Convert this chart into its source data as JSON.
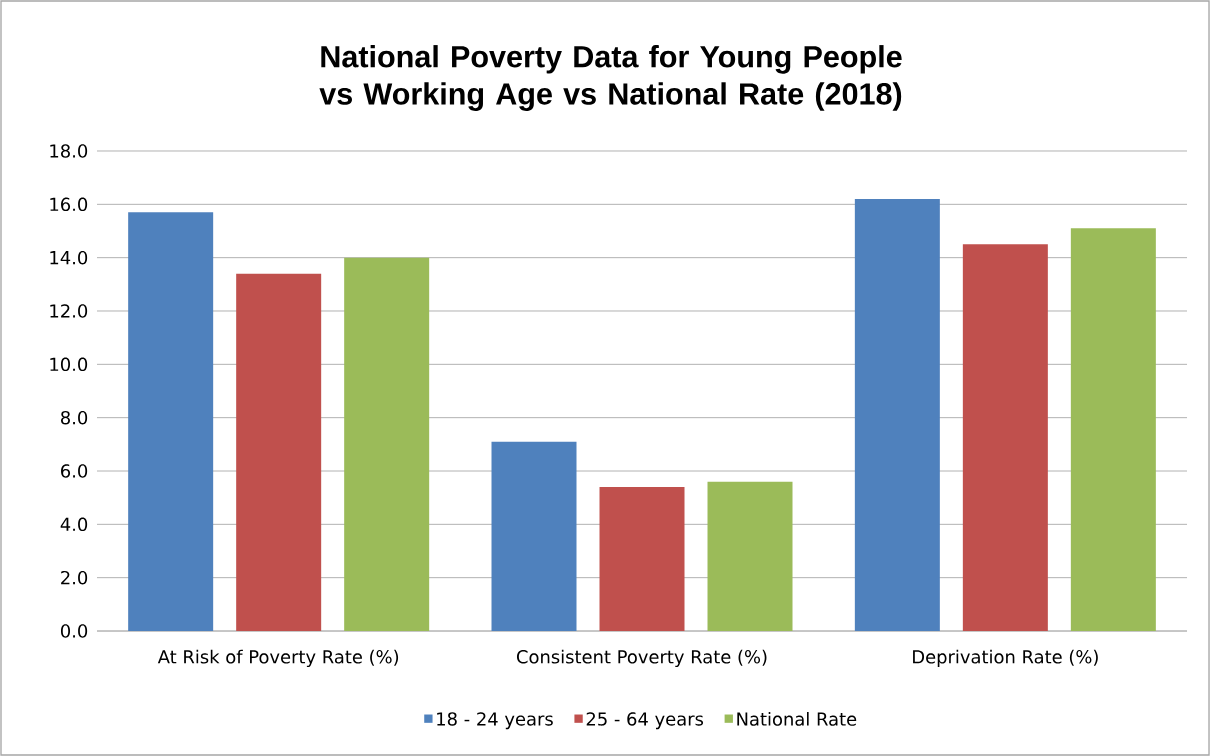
{
  "chart_data": {
    "type": "bar",
    "title": "National Poverty Data for Young People vs Working Age vs National Rate (2018)",
    "categories": [
      "At Risk of Poverty Rate (%)",
      "Consistent Poverty Rate (%)",
      "Deprivation Rate (%)"
    ],
    "series": [
      {
        "name": "18 - 24 years",
        "color": "#4f81bd",
        "values": [
          15.7,
          7.1,
          16.2
        ]
      },
      {
        "name": "25 - 64 years",
        "color": "#c0504d",
        "values": [
          13.4,
          5.4,
          14.5
        ]
      },
      {
        "name": "National Rate",
        "color": "#9bbb59",
        "values": [
          14.0,
          5.6,
          15.1
        ]
      }
    ],
    "ylim": [
      0,
      18
    ],
    "yticks": [
      {
        "value": 0,
        "label": "0.0"
      },
      {
        "value": 2,
        "label": "2.0"
      },
      {
        "value": 4,
        "label": "4.0"
      },
      {
        "value": 6,
        "label": "6.0"
      },
      {
        "value": 8,
        "label": "8.0"
      },
      {
        "value": 10,
        "label": "10.0"
      },
      {
        "value": 12,
        "label": "12.0"
      },
      {
        "value": 14,
        "label": "14.0"
      },
      {
        "value": 16,
        "label": "16.0"
      },
      {
        "value": 18,
        "label": "18.0"
      }
    ],
    "grid": "y",
    "legend": "bottom"
  }
}
